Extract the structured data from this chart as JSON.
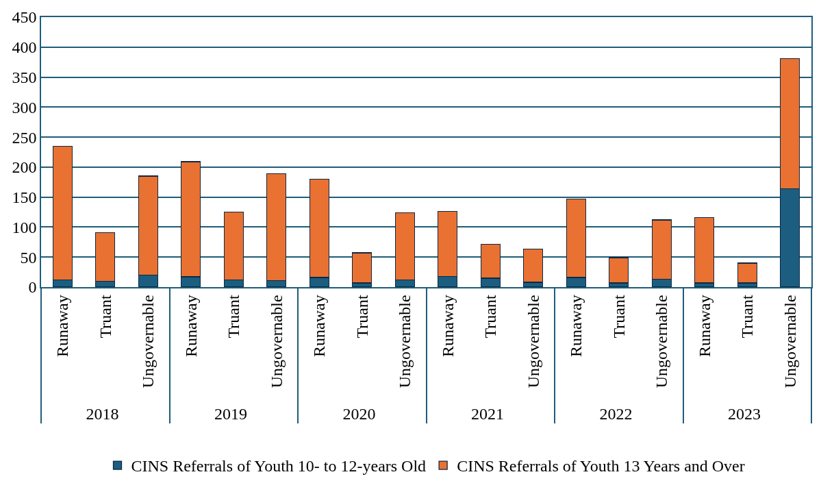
{
  "chart_data": {
    "type": "bar",
    "stacked": true,
    "categories": [
      "Runaway",
      "Truant",
      "Ungovernable",
      "Runaway",
      "Truant",
      "Ungovernable",
      "Runaway",
      "Truant",
      "Ungovernable",
      "Runaway",
      "Truant",
      "Ungovernable",
      "Runaway",
      "Truant",
      "Ungovernable",
      "Runaway",
      "Truant",
      "Ungovernable"
    ],
    "annotations": [
      "2018",
      "2019",
      "2020",
      "2021",
      "2022",
      "2023"
    ],
    "series": [
      {
        "name": "CINS Referrals of Youth 10- to 12-years Old",
        "color": "#1b5e80",
        "values": [
          12,
          10,
          20,
          17,
          12,
          11,
          16,
          7,
          12,
          18,
          15,
          8,
          16,
          7,
          13,
          7,
          7,
          164
        ]
      },
      {
        "name": "CINS Referrals of Youth 13 Years and Over",
        "color": "#e97132",
        "values": [
          223,
          81,
          165,
          192,
          113,
          178,
          164,
          50,
          112,
          108,
          56,
          55,
          131,
          42,
          99,
          109,
          33,
          217
        ]
      }
    ],
    "ylim": [
      0,
      450
    ],
    "yticks": [
      0,
      50,
      100,
      150,
      200,
      250,
      300,
      350,
      400,
      450
    ],
    "grid": "y",
    "legend": "bottom"
  }
}
